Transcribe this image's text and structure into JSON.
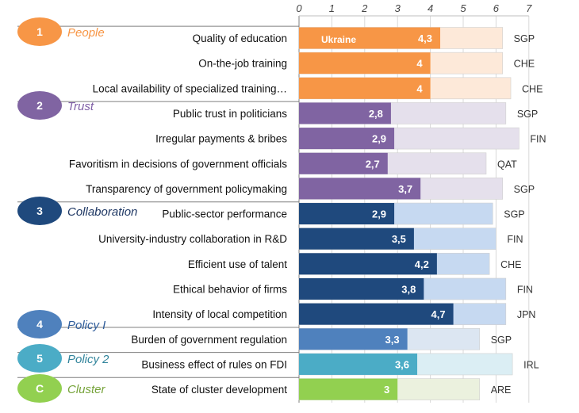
{
  "chart_data": {
    "type": "bar",
    "orientation": "horizontal",
    "xlim": [
      0,
      7
    ],
    "xticks": [
      "0",
      "1",
      "2",
      "3",
      "4",
      "5",
      "6",
      "7"
    ],
    "series_note": "Ukraine",
    "groups": [
      {
        "num": "1",
        "name": "People",
        "color": "#f79646",
        "name_color": "#f79646"
      },
      {
        "num": "2",
        "name": "Trust",
        "color": "#8064a2",
        "name_color": "#7f5fa6"
      },
      {
        "num": "3",
        "name": "Collaboration",
        "color": "#1f497d",
        "name_color": "#1f3864"
      },
      {
        "num": "4",
        "name": "Policy I",
        "color": "#4f81bd",
        "name_color": "#2e5c9a"
      },
      {
        "num": "5",
        "name": "Policy 2",
        "color": "#4bacc6",
        "name_color": "#31849b"
      },
      {
        "num": "C",
        "name": "Cluster",
        "color": "#92d050",
        "name_color": "#76a33a"
      }
    ],
    "rows": [
      {
        "label": "Quality of education",
        "value_label": "4,3",
        "value": 4.3,
        "best": 6.2,
        "bench": "SGP",
        "group": 0,
        "bar": "#f79646",
        "bg": "#fde9d9"
      },
      {
        "label": "On-the-job training",
        "value_label": "4",
        "value": 4.0,
        "best": 6.2,
        "bench": "CHE",
        "group": 0,
        "bar": "#f79646",
        "bg": "#fde9d9"
      },
      {
        "label": "Local availability of specialized training…",
        "value_label": "4",
        "value": 4.0,
        "best": 6.45,
        "bench": "CHE",
        "group": 0,
        "bar": "#f79646",
        "bg": "#fde9d9"
      },
      {
        "label": "Public trust in politicians",
        "value_label": "2,8",
        "value": 2.8,
        "best": 6.3,
        "bench": "SGP",
        "group": 1,
        "bar": "#8064a2",
        "bg": "#e5e0ec"
      },
      {
        "label": "Irregular payments & bribes",
        "value_label": "2,9",
        "value": 2.9,
        "best": 6.7,
        "bench": "FIN",
        "group": 1,
        "bar": "#8064a2",
        "bg": "#e5e0ec"
      },
      {
        "label": "Favoritism in decisions of government officials",
        "value_label": "2,7",
        "value": 2.7,
        "best": 5.7,
        "bench": "QAT",
        "group": 1,
        "bar": "#8064a2",
        "bg": "#e5e0ec"
      },
      {
        "label": "Transparency of government policymaking",
        "value_label": "3,7",
        "value": 3.7,
        "best": 6.2,
        "bench": "SGP",
        "group": 1,
        "bar": "#8064a2",
        "bg": "#e5e0ec"
      },
      {
        "label": "Public-sector performance",
        "value_label": "2,9",
        "value": 2.9,
        "best": 5.9,
        "bench": "SGP",
        "group": 2,
        "bar": "#1f497d",
        "bg": "#c6d9f1"
      },
      {
        "label": "University-industry collaboration in R&D",
        "value_label": "3,5",
        "value": 3.5,
        "best": 6.0,
        "bench": "FIN",
        "group": 2,
        "bar": "#1f497d",
        "bg": "#c6d9f1"
      },
      {
        "label": "Efficient use of talent",
        "value_label": "4,2",
        "value": 4.2,
        "best": 5.8,
        "bench": "CHE",
        "group": 2,
        "bar": "#1f497d",
        "bg": "#c6d9f1"
      },
      {
        "label": "Ethical behavior of firms",
        "value_label": "3,8",
        "value": 3.8,
        "best": 6.3,
        "bench": "FIN",
        "group": 2,
        "bar": "#1f497d",
        "bg": "#c6d9f1"
      },
      {
        "label": "Intensity of local competition",
        "value_label": "4,7",
        "value": 4.7,
        "best": 6.3,
        "bench": "JPN",
        "group": 2,
        "bar": "#1f497d",
        "bg": "#c6d9f1"
      },
      {
        "label": "Burden of government regulation",
        "value_label": "3,3",
        "value": 3.3,
        "best": 5.5,
        "bench": "SGP",
        "group": 3,
        "bar": "#4f81bd",
        "bg": "#dce6f2"
      },
      {
        "label": "Business effect of rules on FDI",
        "value_label": "3,6",
        "value": 3.6,
        "best": 6.5,
        "bench": "IRL",
        "group": 4,
        "bar": "#4bacc6",
        "bg": "#dbeef4"
      },
      {
        "label": "State of cluster development",
        "value_label": "3",
        "value": 3.0,
        "best": 5.5,
        "bench": "ARE",
        "group": 5,
        "bar": "#92d050",
        "bg": "#ebf1de"
      }
    ]
  }
}
